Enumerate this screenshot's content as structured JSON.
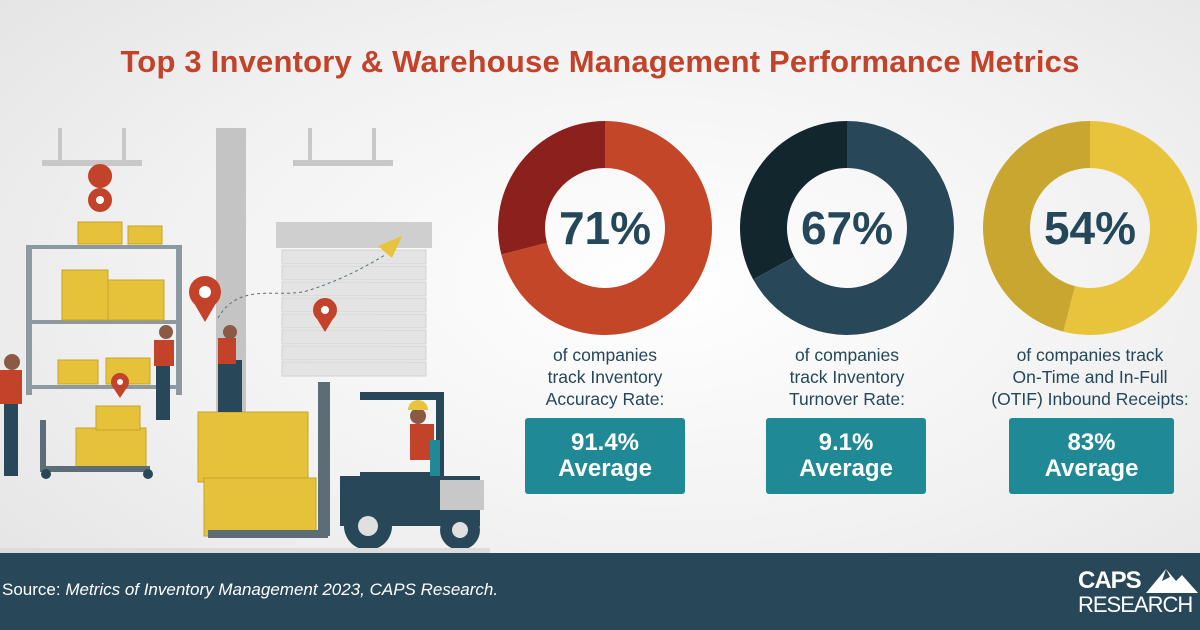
{
  "title": "Top 3 Inventory & Warehouse Management Performance Metrics",
  "chart_data": {
    "type": "pie",
    "charts": [
      {
        "value": 71,
        "label": "71%",
        "description": [
          "of companies",
          "track Inventory",
          "Accuracy Rate:"
        ],
        "average_value": "91.4%",
        "average_label": "Average",
        "color": "#c24627",
        "remainder_color": "#8c201d"
      },
      {
        "value": 67,
        "label": "67%",
        "description": [
          "of companies",
          "track Inventory",
          "Turnover Rate:"
        ],
        "average_value": "9.1%",
        "average_label": "Average",
        "color": "#284859",
        "remainder_color": "#11262d"
      },
      {
        "value": 54,
        "label": "54%",
        "description": [
          "of companies track",
          "On-Time and In-Full",
          "(OTIF) Inbound Receipts:"
        ],
        "average_value": "83%",
        "average_label": "Average",
        "color": "#e8c43c",
        "remainder_color": "#c9a630"
      }
    ]
  },
  "colors": {
    "title": "#c2432a",
    "text": "#24475a",
    "average_box": "#1f8a96",
    "footer": "#284859"
  },
  "footer": {
    "source_prefix": "Source: ",
    "source_text": "Metrics of Inventory Management 2023, CAPS Research.",
    "logo_line1": "CAPS",
    "logo_line2": "RESEARCH"
  }
}
